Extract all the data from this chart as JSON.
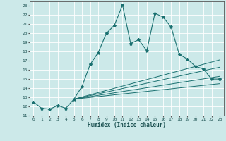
{
  "xlabel": "Humidex (Indice chaleur)",
  "background_color": "#cce9e9",
  "grid_color": "#ffffff",
  "line_color": "#1a7070",
  "xlim": [
    -0.5,
    23.5
  ],
  "ylim": [
    11,
    23.5
  ],
  "xticks": [
    0,
    1,
    2,
    3,
    4,
    5,
    6,
    7,
    8,
    9,
    10,
    11,
    12,
    13,
    14,
    15,
    16,
    17,
    18,
    19,
    20,
    21,
    22,
    23
  ],
  "yticks": [
    11,
    12,
    13,
    14,
    15,
    16,
    17,
    18,
    19,
    20,
    21,
    22,
    23
  ],
  "series": [
    {
      "x": [
        0,
        1,
        2,
        3,
        4,
        5,
        6,
        7,
        8,
        9,
        10,
        11,
        12,
        13,
        14,
        15,
        16,
        17,
        18,
        19,
        20,
        21,
        22,
        23
      ],
      "y": [
        12.5,
        11.8,
        11.7,
        12.1,
        11.8,
        12.8,
        14.2,
        16.6,
        17.9,
        20.0,
        20.9,
        23.1,
        18.9,
        19.3,
        18.1,
        22.2,
        21.8,
        20.7,
        17.7,
        17.2,
        16.4,
        16.1,
        15.0,
        15.0
      ],
      "marker": "*",
      "linewidth": 0.8,
      "markersize": 3.0
    },
    {
      "x": [
        5,
        23
      ],
      "y": [
        12.8,
        17.1
      ],
      "marker": null,
      "linewidth": 0.7,
      "markersize": 0
    },
    {
      "x": [
        5,
        23
      ],
      "y": [
        12.8,
        16.3
      ],
      "marker": null,
      "linewidth": 0.7,
      "markersize": 0
    },
    {
      "x": [
        5,
        23
      ],
      "y": [
        12.8,
        15.3
      ],
      "marker": null,
      "linewidth": 0.7,
      "markersize": 0
    },
    {
      "x": [
        5,
        23
      ],
      "y": [
        12.8,
        14.5
      ],
      "marker": null,
      "linewidth": 0.7,
      "markersize": 0
    }
  ]
}
